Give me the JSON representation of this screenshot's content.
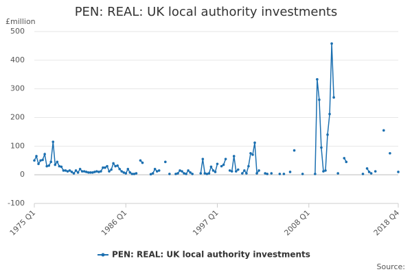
{
  "chart_data": {
    "type": "line",
    "title": "PEN: REAL: UK local authority investments",
    "y_unit_label": "£million",
    "source": "Source:",
    "categories": [
      "1975 Q1",
      null,
      null,
      null,
      null,
      null,
      null,
      null,
      null,
      null,
      null,
      null,
      null,
      null,
      null,
      null,
      null,
      null,
      null,
      null,
      null,
      null,
      null,
      null,
      null,
      null,
      null,
      null,
      null,
      null,
      null,
      null,
      null,
      null,
      null,
      null,
      null,
      null,
      null,
      null,
      null,
      null,
      null,
      null,
      "1986 Q1",
      null,
      null,
      null,
      null,
      null,
      null,
      null,
      null,
      null,
      null,
      null,
      null,
      null,
      null,
      null,
      null,
      null,
      null,
      null,
      null,
      null,
      null,
      null,
      null,
      null,
      null,
      null,
      null,
      null,
      null,
      null,
      null,
      null,
      null,
      null,
      null,
      null,
      null,
      null,
      null,
      null,
      null,
      null,
      "1997 Q1",
      null,
      null,
      null,
      null,
      null,
      null,
      null,
      null,
      null,
      null,
      null,
      null,
      null,
      null,
      null,
      null,
      null,
      null,
      null,
      null,
      null,
      null,
      null,
      null,
      null,
      null,
      null,
      null,
      null,
      null,
      null,
      null,
      null,
      null,
      null,
      null,
      null,
      null,
      null,
      null,
      null,
      null,
      null,
      "2008 Q1",
      null,
      null,
      null,
      null,
      null,
      null,
      null,
      null,
      null,
      null,
      null,
      null,
      null,
      null,
      null,
      null,
      null,
      null,
      null,
      null,
      null,
      null,
      null,
      null,
      null,
      null,
      null,
      null,
      null,
      null,
      null,
      null,
      null,
      null,
      null,
      null,
      null,
      null,
      null,
      null,
      null,
      null,
      "2018 Q4"
    ],
    "series": [
      {
        "name": "PEN: REAL: UK local authority investments",
        "color": "#1b6fb0",
        "values": [
          50,
          65,
          38,
          50,
          52,
          72,
          30,
          32,
          45,
          115,
          35,
          45,
          30,
          28,
          15,
          15,
          12,
          15,
          10,
          5,
          15,
          8,
          20,
          12,
          12,
          10,
          8,
          8,
          8,
          10,
          12,
          10,
          12,
          25,
          25,
          30,
          12,
          18,
          40,
          30,
          32,
          20,
          12,
          8,
          5,
          20,
          8,
          3,
          3,
          5,
          null,
          50,
          42,
          null,
          null,
          null,
          2,
          5,
          20,
          12,
          15,
          null,
          null,
          45,
          null,
          3,
          null,
          null,
          3,
          5,
          15,
          12,
          5,
          3,
          15,
          8,
          3,
          null,
          null,
          null,
          5,
          55,
          5,
          3,
          5,
          28,
          15,
          10,
          38,
          null,
          30,
          35,
          55,
          null,
          15,
          12,
          65,
          12,
          18,
          null,
          5,
          15,
          5,
          30,
          75,
          70,
          112,
          5,
          15,
          null,
          null,
          5,
          3,
          null,
          5,
          null,
          null,
          null,
          3,
          null,
          3,
          null,
          null,
          10,
          null,
          85,
          null,
          null,
          null,
          3,
          null,
          null,
          null,
          null,
          null,
          3,
          333,
          262,
          95,
          12,
          15,
          140,
          212,
          458,
          270,
          null,
          5,
          null,
          null,
          58,
          45,
          null,
          null,
          null,
          null,
          null,
          null,
          null,
          3,
          null,
          22,
          10,
          5,
          null,
          12,
          null,
          null,
          null,
          155,
          null,
          null,
          75,
          null,
          null,
          null,
          10
        ]
      }
    ],
    "ylim": [
      -100,
      500
    ],
    "yticks": [
      -100,
      0,
      100,
      200,
      300,
      400,
      500
    ],
    "grid": true
  }
}
